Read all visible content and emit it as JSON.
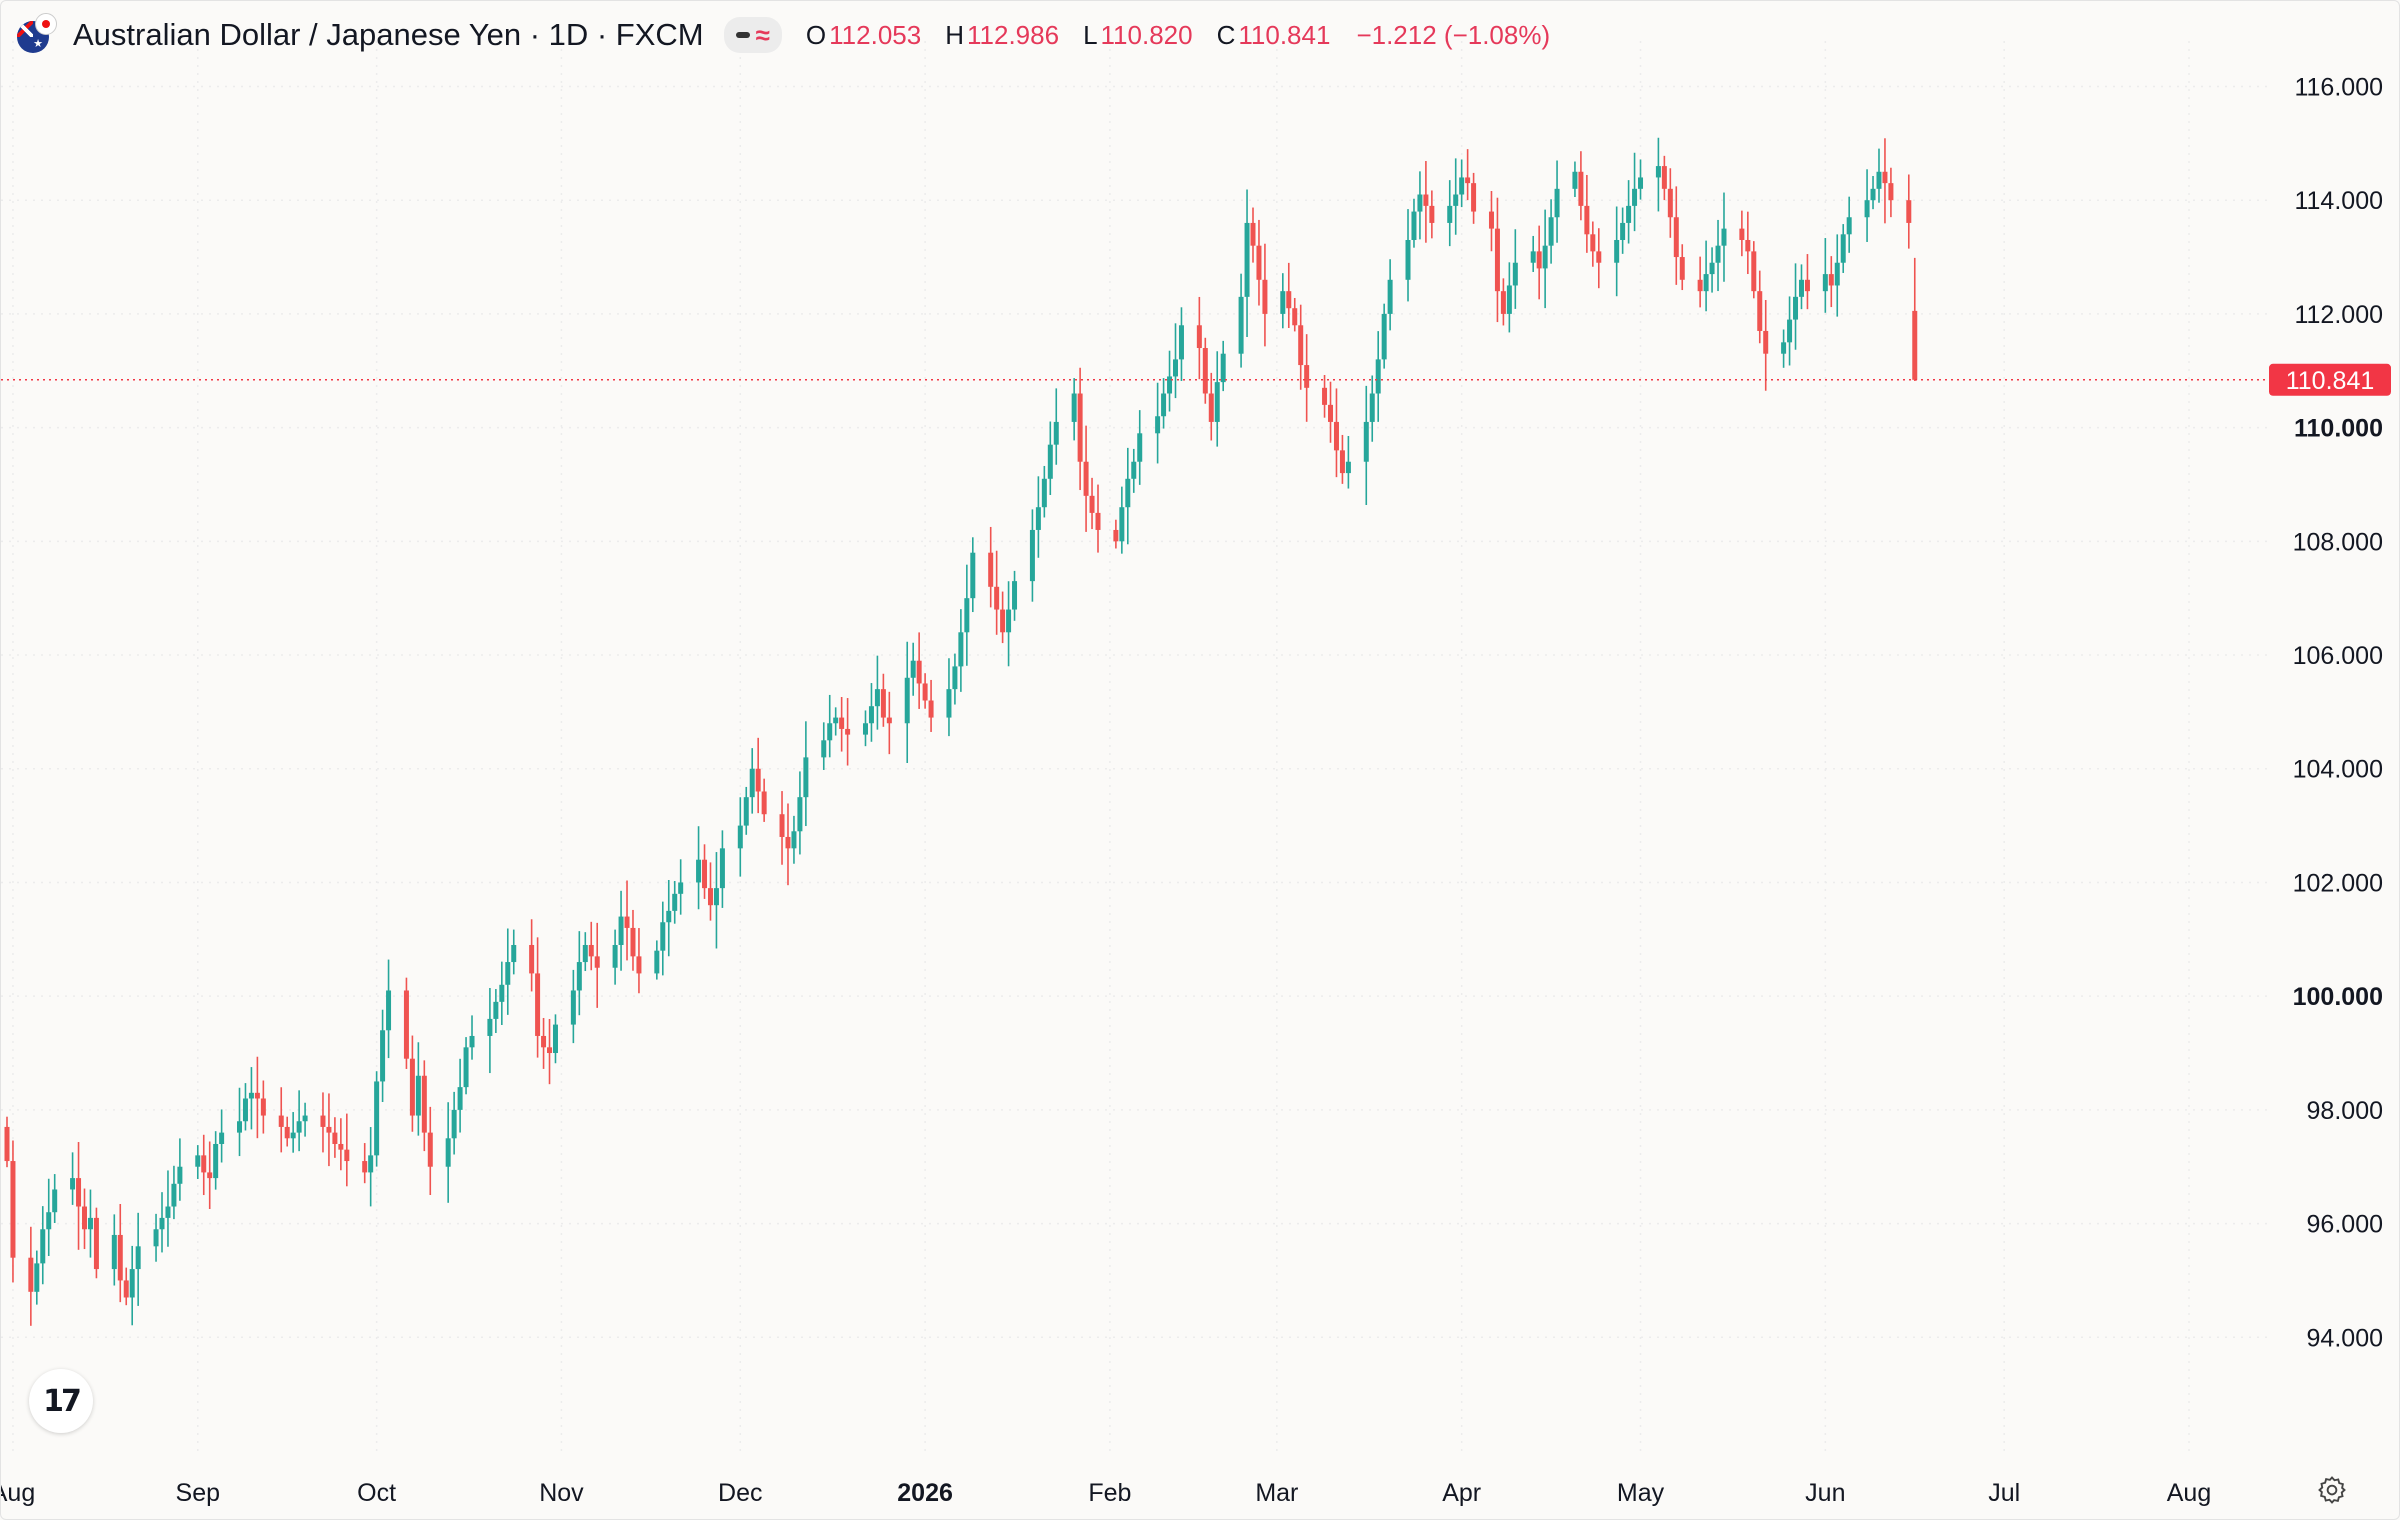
{
  "header": {
    "symbol_title": "Australian Dollar / Japanese Yen · 1D · FXCM",
    "open_label": "O",
    "open": "112.053",
    "high_label": "H",
    "high": "112.986",
    "low_label": "L",
    "low": "110.820",
    "close_label": "C",
    "close": "110.841",
    "change": "−1.212 (−1.08%)"
  },
  "colors": {
    "up": "#26a69a",
    "down": "#ef5350",
    "label_bg": "#f23645",
    "grid": "#ececec"
  },
  "icons": {
    "logo": "tradingview-logo-icon",
    "settings": "gear-icon",
    "flags": "aud-jpy-flag-icon"
  },
  "chart_data": {
    "type": "candlestick",
    "symbol": "AUD/JPY",
    "interval": "1D",
    "ylim": [
      92.0,
      116.8
    ],
    "y_ticks": [
      "94.000",
      "96.000",
      "98.000",
      "100.000",
      "102.000",
      "104.000",
      "106.000",
      "108.000",
      "110.000",
      "112.000",
      "114.000",
      "116.000"
    ],
    "y_ticks_bold": [
      "100.000",
      "110.000"
    ],
    "x_ticks": [
      {
        "label": "Aug",
        "date": "2025-08-01"
      },
      {
        "label": "Sep",
        "date": "2025-09-01"
      },
      {
        "label": "Oct",
        "date": "2025-10-01"
      },
      {
        "label": "Nov",
        "date": "2025-11-01"
      },
      {
        "label": "Dec",
        "date": "2025-12-01"
      },
      {
        "label": "2026",
        "date": "2026-01-01",
        "bold": true
      },
      {
        "label": "Feb",
        "date": "2026-02-01"
      },
      {
        "label": "Mar",
        "date": "2026-03-01"
      },
      {
        "label": "Apr",
        "date": "2026-04-01"
      },
      {
        "label": "May",
        "date": "2026-05-01"
      },
      {
        "label": "Jun",
        "date": "2026-06-01"
      },
      {
        "label": "Jul",
        "date": "2026-07-01"
      },
      {
        "label": "Aug",
        "date": "2026-08-01"
      }
    ],
    "last_price": "110.841",
    "first_date": "2025-07-31",
    "closes": [
      97.1,
      95.4,
      94.8,
      95.3,
      95.9,
      96.2,
      96.6,
      96.8,
      96.3,
      95.9,
      96.1,
      95.2,
      95.8,
      95.0,
      94.7,
      95.2,
      95.6,
      95.9,
      96.1,
      96.3,
      96.7,
      97.0,
      97.2,
      96.9,
      96.8,
      97.4,
      97.6,
      97.8,
      98.2,
      98.3,
      98.2,
      97.9,
      97.7,
      97.5,
      97.6,
      97.8,
      97.9,
      97.7,
      97.6,
      97.4,
      97.3,
      97.1,
      96.9,
      97.2,
      98.5,
      99.4,
      100.1,
      98.9,
      97.9,
      98.6,
      97.6,
      97.0,
      97.5,
      98.0,
      98.4,
      99.1,
      99.3,
      99.6,
      99.9,
      100.2,
      100.6,
      100.9,
      100.4,
      99.3,
      99.1,
      99.0,
      99.5,
      100.1,
      100.6,
      100.9,
      100.7,
      100.5,
      100.9,
      101.4,
      101.2,
      100.7,
      100.4,
      100.8,
      101.3,
      101.5,
      101.8,
      102.0,
      102.4,
      101.9,
      101.6,
      101.9,
      102.6,
      103.0,
      103.5,
      104.0,
      103.6,
      103.2,
      102.8,
      102.6,
      102.9,
      103.5,
      104.2,
      104.5,
      104.8,
      104.9,
      104.7,
      104.6,
      104.8,
      105.1,
      105.4,
      104.9,
      104.8,
      105.6,
      105.9,
      105.5,
      105.2,
      104.9,
      105.4,
      105.8,
      106.4,
      107.0,
      107.8,
      107.2,
      106.8,
      106.4,
      106.8,
      107.3,
      108.2,
      108.6,
      109.1,
      109.7,
      110.1,
      110.6,
      109.4,
      108.8,
      108.5,
      108.2,
      108.0,
      108.6,
      109.1,
      109.4,
      109.9,
      110.2,
      110.6,
      110.9,
      111.2,
      111.8,
      111.4,
      110.6,
      110.1,
      110.8,
      111.3,
      112.3,
      113.6,
      113.2,
      112.6,
      112.0,
      112.4,
      112.1,
      111.8,
      111.1,
      110.7,
      110.4,
      110.1,
      109.6,
      109.2,
      109.4,
      110.1,
      110.6,
      111.2,
      112.0,
      112.6,
      113.3,
      113.8,
      114.1,
      113.9,
      113.6,
      113.9,
      114.1,
      114.4,
      114.3,
      113.8,
      113.5,
      112.4,
      112.0,
      112.5,
      112.9,
      113.1,
      112.8,
      113.2,
      113.7,
      114.2,
      114.5,
      113.9,
      113.4,
      113.1,
      112.9,
      113.3,
      113.6,
      113.9,
      114.2,
      114.4,
      114.6,
      114.2,
      113.7,
      113.0,
      112.6,
      112.4,
      112.7,
      112.9,
      113.2,
      113.5,
      113.3,
      113.1,
      112.4,
      111.7,
      111.3,
      111.5,
      111.9,
      112.3,
      112.6,
      112.4,
      112.7,
      112.5,
      112.9,
      113.4,
      113.7,
      114.0,
      114.2,
      114.5,
      114.3,
      114.0,
      113.6,
      110.8
    ],
    "last_bar": {
      "open": 112.053,
      "high": 112.986,
      "low": 110.82,
      "close": 110.841
    }
  }
}
